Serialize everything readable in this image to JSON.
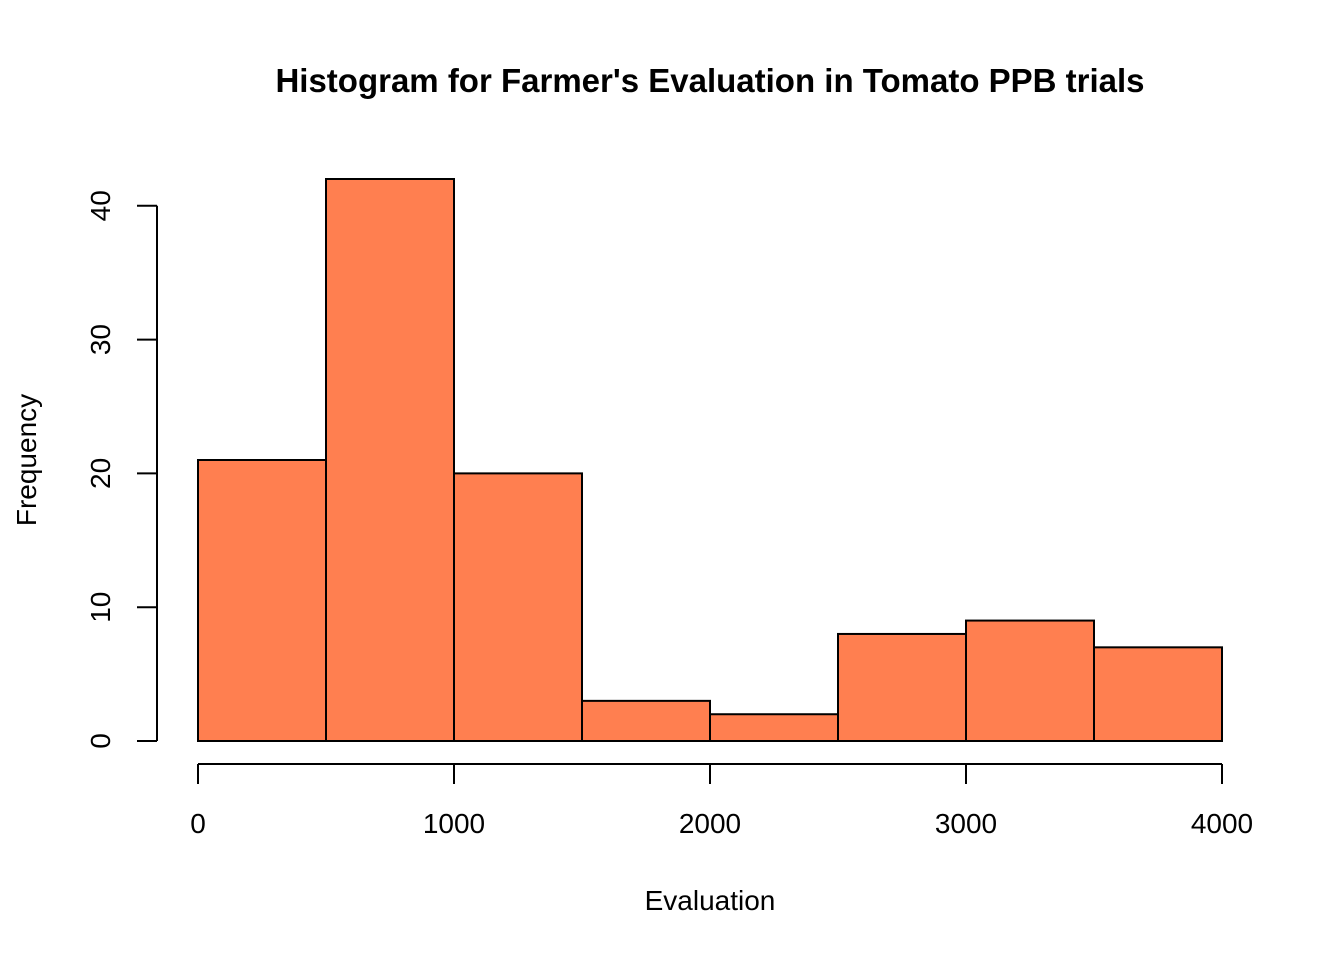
{
  "chart_data": {
    "type": "bar",
    "title": "Histogram for Farmer's Evaluation in Tomato PPB trials",
    "xlabel": "Evaluation",
    "ylabel": "Frequency",
    "bin_edges": [
      0,
      500,
      1000,
      1500,
      2000,
      2500,
      3000,
      3500,
      4000
    ],
    "values": [
      21,
      42,
      20,
      3,
      2,
      8,
      9,
      7
    ],
    "xlim": [
      0,
      4000
    ],
    "ylim": [
      0,
      42
    ],
    "x_ticks": [
      0,
      1000,
      2000,
      3000,
      4000
    ],
    "y_ticks": [
      0,
      10,
      20,
      30,
      40
    ],
    "bar_color": "#FF7F50",
    "edge_color": "#000000",
    "grid": false,
    "legend": "none"
  }
}
